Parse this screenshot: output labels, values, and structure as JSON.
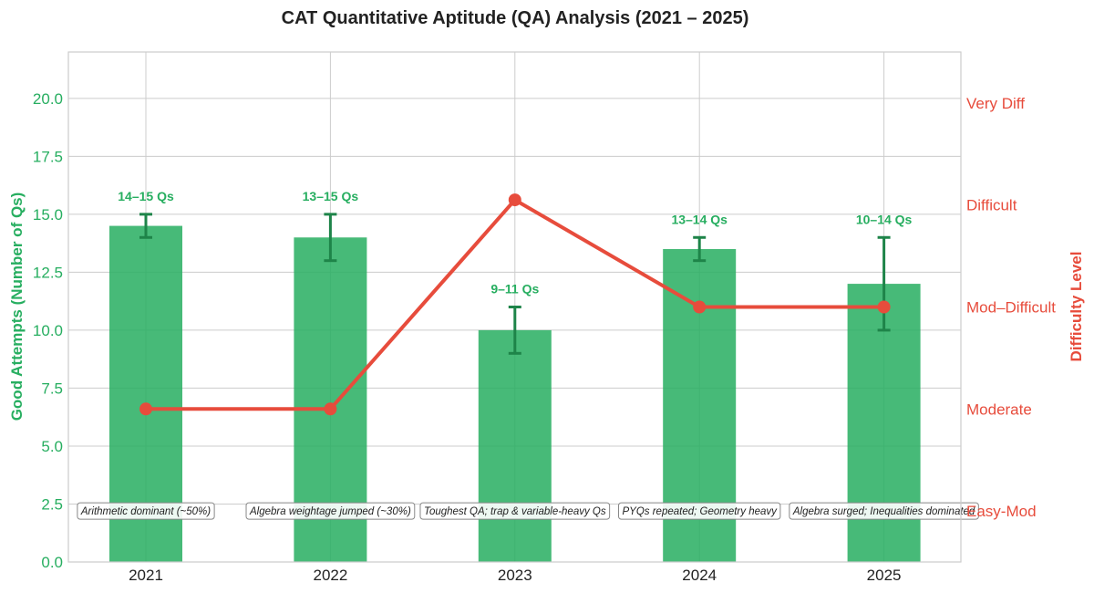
{
  "chart_data": {
    "type": "bar",
    "title": "CAT Quantitative Aptitude (QA) Analysis (2021 – 2025)",
    "xlabel": "",
    "ylabel": "Good Attempts (Number of Qs)",
    "ylabel_right": "Difficulty Level",
    "ylim": [
      0,
      22
    ],
    "ylim_right": [
      0.5,
      5.5
    ],
    "grid": true,
    "categories": [
      "2021",
      "2022",
      "2023",
      "2024",
      "2025"
    ],
    "y_ticks": [
      "0.0",
      "2.5",
      "5.0",
      "7.5",
      "10.0",
      "12.5",
      "15.0",
      "17.5",
      "20.0"
    ],
    "y_tick_values": [
      0,
      2.5,
      5,
      7.5,
      10,
      12.5,
      15,
      17.5,
      20
    ],
    "difficulty_ticks": [
      {
        "label": "Easy-Mod",
        "value": 1
      },
      {
        "label": "Moderate",
        "value": 2
      },
      {
        "label": "Mod–Difficult",
        "value": 3
      },
      {
        "label": "Difficult",
        "value": 4
      },
      {
        "label": "Very Diff",
        "value": 5
      }
    ],
    "series": [
      {
        "kind": "bar",
        "color": "#27ae60",
        "values": [
          14.5,
          14,
          10,
          13.5,
          12
        ],
        "error_low": [
          14,
          13,
          9,
          13,
          10
        ],
        "error_high": [
          15,
          15,
          11,
          14,
          14
        ],
        "labels": [
          "14–15 Qs",
          "13–15 Qs",
          "9–11 Qs",
          "13–14 Qs",
          "10–14 Qs"
        ]
      },
      {
        "kind": "line",
        "axis": "right",
        "color": "#e74c3c",
        "values": [
          2,
          2,
          4.05,
          3,
          3
        ]
      }
    ],
    "annotations": [
      "Arithmetic dominant (~50%)",
      "Algebra weightage jumped (~30%)",
      "Toughest QA; trap & variable-heavy Qs",
      "PYQs repeated; Geometry heavy",
      "Algebra surged; Inequalities dominated"
    ],
    "colors": {
      "bar": "#27ae60",
      "error_bar": "#1e8449",
      "line": "#e74c3c",
      "grid": "#cccccc"
    }
  }
}
